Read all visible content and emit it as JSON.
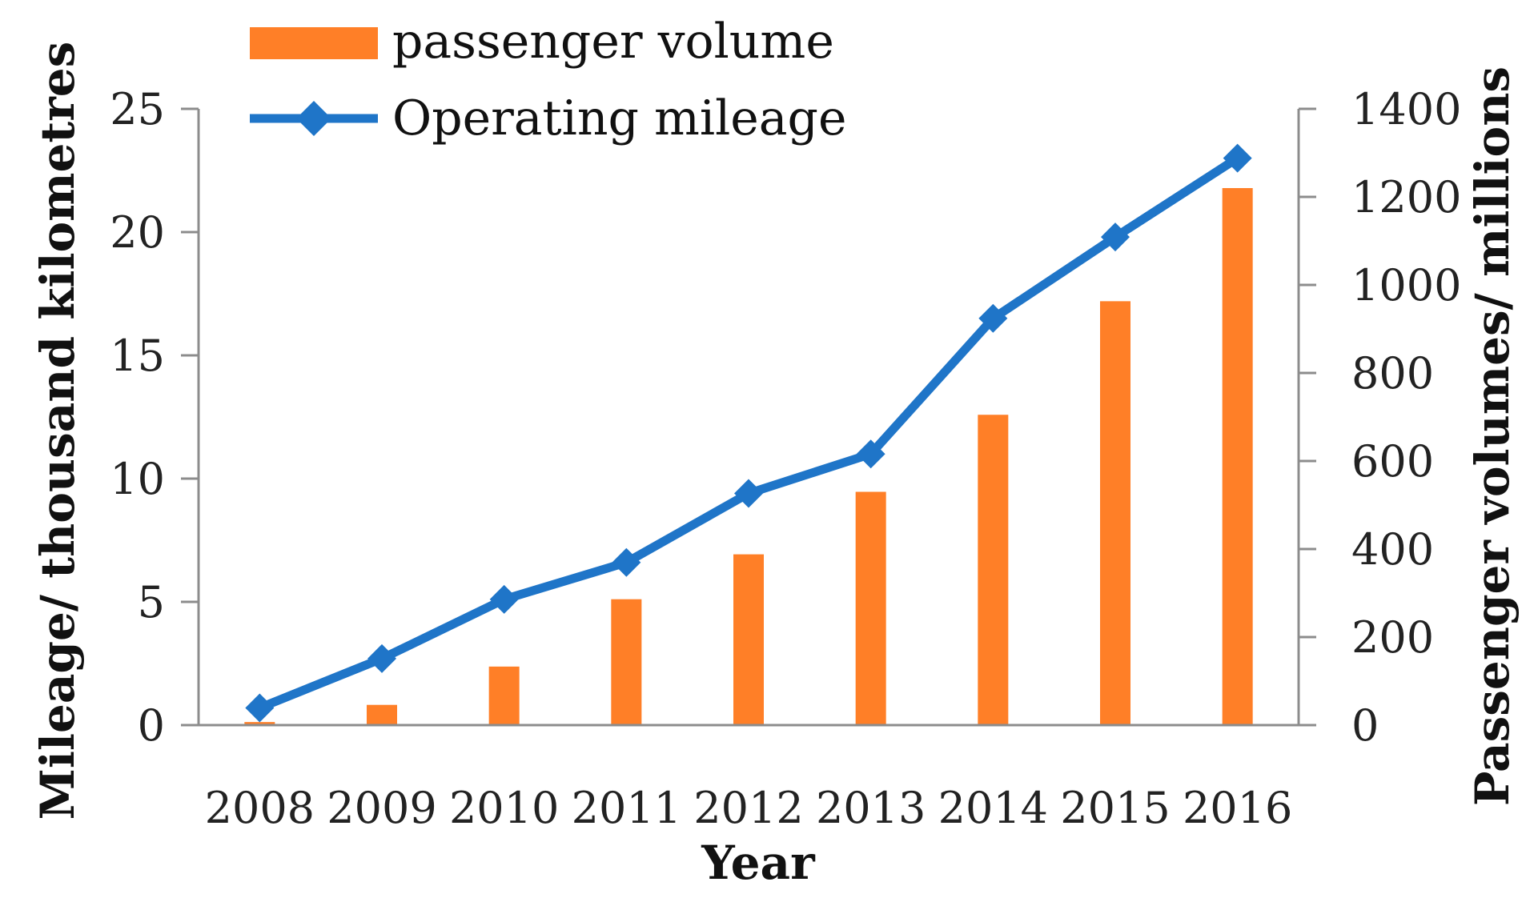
{
  "chart_data": {
    "type": "bar+line",
    "categories": [
      "2008",
      "2009",
      "2010",
      "2011",
      "2012",
      "2013",
      "2014",
      "2015",
      "2016"
    ],
    "series": [
      {
        "name": "passenger volume",
        "type": "bar",
        "axis": "right",
        "color": "#FF7F27",
        "values": [
          7,
          46,
          133,
          286,
          388,
          530,
          705,
          963,
          1220
        ]
      },
      {
        "name": "Operating mileage",
        "type": "line",
        "axis": "left",
        "color": "#1F75C8",
        "marker": "diamond",
        "values": [
          0.7,
          2.7,
          5.1,
          6.6,
          9.4,
          11.0,
          16.5,
          19.8,
          23.0
        ]
      }
    ],
    "xlabel": "Year",
    "ylabel_left": "Mileage/ thousand kilometres",
    "ylabel_right": "Passenger  volumes/ millions",
    "ylim_left": [
      0,
      25
    ],
    "yticks_left": [
      "0",
      "5",
      "10",
      "15",
      "20",
      "25"
    ],
    "ylim_right": [
      0,
      1400
    ],
    "yticks_right": [
      "0",
      "200",
      "400",
      "600",
      "800",
      "1000",
      "1200",
      "1400"
    ],
    "legend": {
      "placement": "top-left",
      "entries": [
        "passenger volume",
        "Operating mileage"
      ]
    }
  }
}
